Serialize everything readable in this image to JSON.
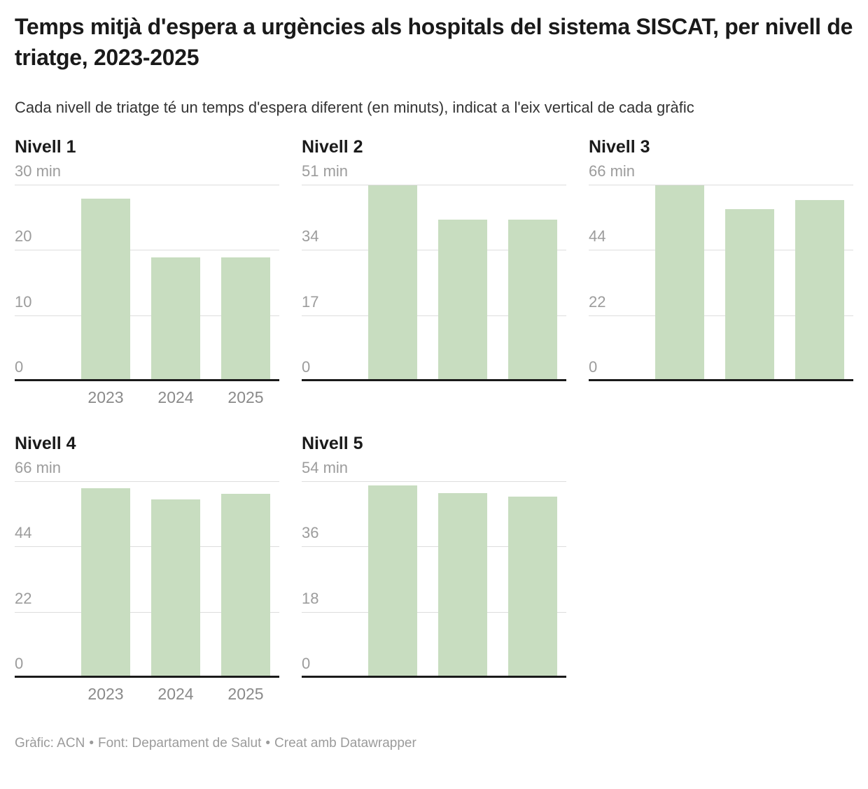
{
  "header": {
    "title": "Temps mitjà d'espera a urgències als hospitals del sistema SISCAT, per nivell de triatge, 2023-2025",
    "subtitle": "Cada nivell de triatge té un temps d'espera diferent (en minuts), indicat a l'eix vertical de cada gràfic"
  },
  "chart_data": [
    {
      "type": "bar",
      "title": "Nivell 1",
      "categories": [
        "2023",
        "2024",
        "2025"
      ],
      "values": [
        28,
        19,
        19
      ],
      "unit": "min",
      "ylabel": "",
      "xlabel": "",
      "ylim": [
        0,
        30
      ],
      "yticks": [
        0,
        10,
        20,
        30
      ],
      "ytop_label": "30 min",
      "grid": true,
      "show_x_labels": true
    },
    {
      "type": "bar",
      "title": "Nivell 2",
      "categories": [
        "2023",
        "2024",
        "2025"
      ],
      "values": [
        51,
        42,
        42
      ],
      "unit": "min",
      "ylabel": "",
      "xlabel": "",
      "ylim": [
        0,
        51
      ],
      "yticks": [
        0,
        17,
        34,
        51
      ],
      "ytop_label": "51 min",
      "grid": true,
      "show_x_labels": false
    },
    {
      "type": "bar",
      "title": "Nivell 3",
      "categories": [
        "2023",
        "2024",
        "2025"
      ],
      "values": [
        66,
        58,
        61
      ],
      "unit": "min",
      "ylabel": "",
      "xlabel": "",
      "ylim": [
        0,
        66
      ],
      "yticks": [
        0,
        22,
        44,
        66
      ],
      "ytop_label": "66 min",
      "grid": true,
      "show_x_labels": false
    },
    {
      "type": "bar",
      "title": "Nivell 4",
      "categories": [
        "2023",
        "2024",
        "2025"
      ],
      "values": [
        64,
        60,
        62
      ],
      "unit": "min",
      "ylabel": "",
      "xlabel": "",
      "ylim": [
        0,
        66
      ],
      "yticks": [
        0,
        22,
        44,
        66
      ],
      "ytop_label": "66 min",
      "grid": true,
      "show_x_labels": true
    },
    {
      "type": "bar",
      "title": "Nivell 5",
      "categories": [
        "2023",
        "2024",
        "2025"
      ],
      "values": [
        53,
        51,
        50
      ],
      "unit": "min",
      "ylabel": "",
      "xlabel": "",
      "ylim": [
        0,
        54
      ],
      "yticks": [
        0,
        18,
        36,
        54
      ],
      "ytop_label": "54 min",
      "grid": true,
      "show_x_labels": false
    }
  ],
  "footer": {
    "credit": "Gràfic: ACN",
    "source": "Font: Departament de Salut",
    "tool": "Creat amb Datawrapper",
    "separator": "•"
  },
  "colors": {
    "bar": "#c8ddc0",
    "gridline": "#dddddd",
    "baseline": "#1a1a1a",
    "tick_label": "#9c9c9c",
    "axis_label": "#8a8a8a",
    "title": "#1a1a1a",
    "subtitle": "#333333",
    "footer": "#9b9b9b"
  }
}
